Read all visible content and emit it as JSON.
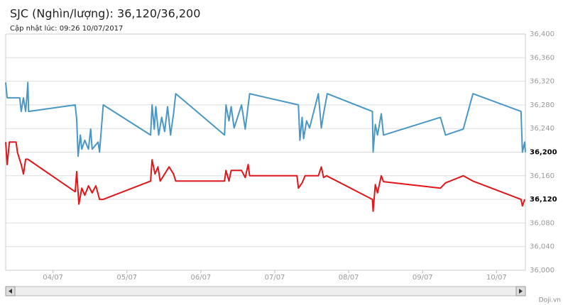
{
  "chart_data": {
    "type": "line",
    "title": "SJC (Nghìn/lượng): 36,120/36,200",
    "subtitle": "Cập nhật lúc: 09:26 10/07/2017",
    "source": "Doji.vn",
    "xlim": [
      3.36,
      10.39
    ],
    "xticks": [
      {
        "value": 4,
        "label": "04/07"
      },
      {
        "value": 5,
        "label": "05/07"
      },
      {
        "value": 6,
        "label": "06/07"
      },
      {
        "value": 7,
        "label": "07/07"
      },
      {
        "value": 8,
        "label": "08/07"
      },
      {
        "value": 9,
        "label": "09/07"
      },
      {
        "value": 10,
        "label": "10/07"
      }
    ],
    "ylim": [
      36000,
      36400
    ],
    "yticks": [
      {
        "value": 36000,
        "label": "36,000"
      },
      {
        "value": 36040,
        "label": "36,040"
      },
      {
        "value": 36080,
        "label": "36,080"
      },
      {
        "value": 36120,
        "label": "36,120"
      },
      {
        "value": 36160,
        "label": "36,160"
      },
      {
        "value": 36200,
        "label": "36,200"
      },
      {
        "value": 36240,
        "label": "36,240"
      },
      {
        "value": 36280,
        "label": "36,280"
      },
      {
        "value": 36320,
        "label": "36,320"
      },
      {
        "value": 36360,
        "label": "36,360"
      },
      {
        "value": 36400,
        "label": "36,400"
      }
    ],
    "grid": true,
    "series": [
      {
        "color": "#4a97c4",
        "x": [
          3.36,
          3.38,
          3.55,
          3.57,
          3.6,
          3.63,
          3.65,
          3.66,
          3.67,
          4.3,
          4.32,
          4.34,
          4.37,
          4.39,
          4.43,
          4.48,
          4.51,
          4.53,
          4.61,
          4.63,
          4.68,
          5.32,
          5.34,
          5.37,
          5.39,
          5.43,
          5.47,
          5.51,
          5.55,
          5.59,
          5.63,
          5.66,
          6.32,
          6.34,
          6.38,
          6.41,
          6.45,
          6.55,
          6.6,
          6.66,
          7.32,
          7.34,
          7.37,
          7.39,
          7.43,
          7.47,
          7.59,
          7.63,
          7.66,
          7.71,
          8.32,
          8.33,
          8.36,
          8.39,
          8.44,
          8.47,
          9.24,
          9.31,
          9.55,
          9.68,
          10.33,
          10.35,
          10.38,
          10.39
        ],
        "values": [
          36318,
          36292,
          36292,
          36269,
          36292,
          36269,
          36299,
          36318,
          36269,
          36280,
          36256,
          36193,
          36229,
          36205,
          36220,
          36205,
          36239,
          36205,
          36217,
          36200,
          36280,
          36229,
          36280,
          36239,
          36277,
          36229,
          36259,
          36235,
          36277,
          36229,
          36265,
          36299,
          36229,
          36280,
          36253,
          36277,
          36241,
          36280,
          36239,
          36299,
          36280,
          36220,
          36259,
          36223,
          36253,
          36241,
          36299,
          36241,
          36265,
          36299,
          36269,
          36200,
          36247,
          36229,
          36265,
          36229,
          36259,
          36229,
          36239,
          36299,
          36269,
          36200,
          36217,
          36200
        ]
      },
      {
        "color": "#e0161a",
        "x": [
          3.36,
          3.38,
          3.41,
          3.5,
          3.52,
          3.57,
          3.6,
          3.63,
          3.66,
          4.3,
          4.32,
          4.35,
          4.39,
          4.43,
          4.48,
          4.53,
          4.58,
          4.63,
          4.68,
          5.32,
          5.34,
          5.38,
          5.42,
          5.45,
          5.51,
          5.57,
          5.63,
          5.66,
          6.32,
          6.34,
          6.38,
          6.41,
          6.55,
          6.6,
          6.64,
          6.66,
          7.3,
          7.32,
          7.37,
          7.41,
          7.59,
          7.63,
          7.66,
          7.7,
          8.32,
          8.33,
          8.36,
          8.39,
          8.44,
          8.47,
          9.24,
          9.31,
          9.55,
          9.68,
          10.33,
          10.35,
          10.38
        ],
        "values": [
          36217,
          36179,
          36217,
          36217,
          36199,
          36179,
          36163,
          36188,
          36188,
          36133,
          36167,
          36112,
          36139,
          36127,
          36143,
          36131,
          36143,
          36120,
          36120,
          36151,
          36187,
          36163,
          36175,
          36151,
          36163,
          36175,
          36163,
          36151,
          36151,
          36169,
          36151,
          36169,
          36169,
          36157,
          36179,
          36160,
          36160,
          36139,
          36148,
          36160,
          36160,
          36175,
          36157,
          36160,
          36120,
          36100,
          36145,
          36131,
          36160,
          36150,
          36139,
          36148,
          36160,
          36151,
          36120,
          36109,
          36120
        ]
      }
    ]
  }
}
